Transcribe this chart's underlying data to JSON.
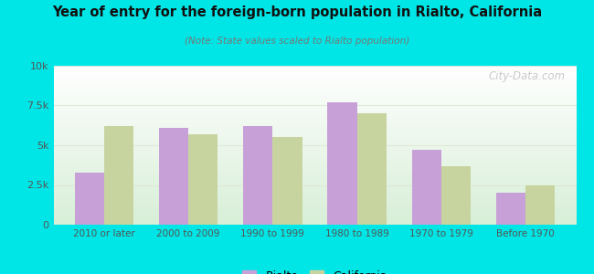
{
  "title": "Year of entry for the foreign-born population in Rialto, California",
  "subtitle": "(Note: State values scaled to Rialto population)",
  "categories": [
    "2010 or later",
    "2000 to 2009",
    "1990 to 1999",
    "1980 to 1989",
    "1970 to 1979",
    "Before 1970"
  ],
  "rialto_values": [
    3300,
    6100,
    6200,
    7700,
    4700,
    2000
  ],
  "california_values": [
    6200,
    5700,
    5500,
    7000,
    3700,
    2500
  ],
  "rialto_color": "#c8a0d8",
  "california_color": "#c8d4a0",
  "background_outer": "#00e5e5",
  "bar_width": 0.35,
  "ylim": [
    0,
    10000
  ],
  "yticks": [
    0,
    2500,
    5000,
    7500,
    10000
  ],
  "ytick_labels": [
    "0",
    "2.5k",
    "5k",
    "7.5k",
    "10k"
  ],
  "grid_color": "#e0e8d8",
  "watermark": "City-Data.com",
  "legend_labels": [
    "Rialto",
    "California"
  ]
}
